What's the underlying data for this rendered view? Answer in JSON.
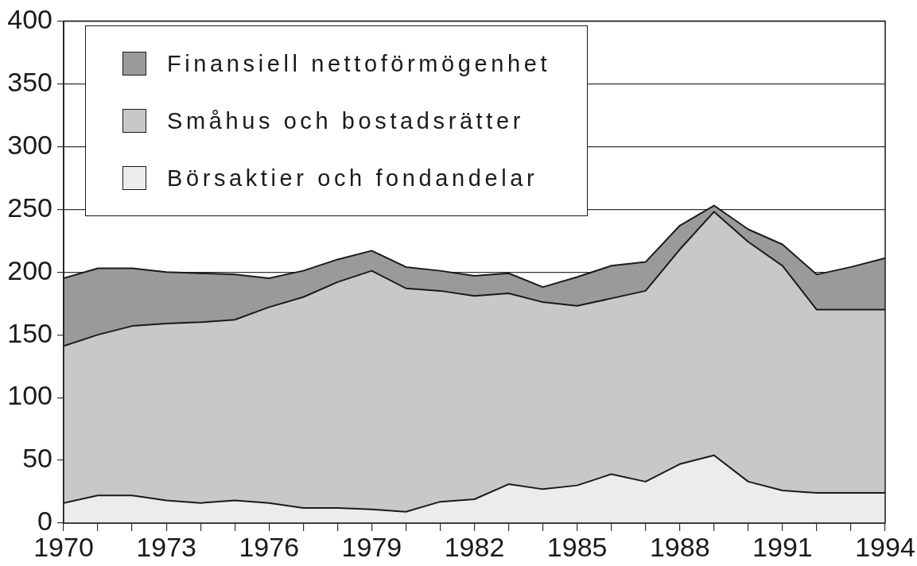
{
  "chart_data": {
    "type": "area",
    "stacked": true,
    "x": [
      1970,
      1971,
      1972,
      1973,
      1974,
      1975,
      1976,
      1977,
      1978,
      1979,
      1980,
      1981,
      1982,
      1983,
      1984,
      1985,
      1986,
      1987,
      1988,
      1989,
      1990,
      1991,
      1992,
      1993,
      1994
    ],
    "series": [
      {
        "name": "Börsaktier och fondandelar",
        "color": "#ececec",
        "values": [
          16,
          22,
          22,
          18,
          16,
          18,
          16,
          12,
          12,
          11,
          9,
          17,
          19,
          31,
          27,
          30,
          39,
          33,
          47,
          54,
          33,
          26,
          24,
          24,
          24
        ]
      },
      {
        "name": "Småhus och bostadsrätter",
        "color": "#c8c8c8",
        "values": [
          125,
          128,
          135,
          141,
          144,
          144,
          156,
          168,
          180,
          190,
          178,
          168,
          162,
          152,
          149,
          143,
          140,
          152,
          171,
          194,
          191,
          179,
          146,
          146,
          146
        ]
      },
      {
        "name": "Finansiell nettoförmögenhet",
        "color": "#9a9a9a",
        "values": [
          54,
          53,
          46,
          41,
          39,
          36,
          23,
          21,
          18,
          16,
          17,
          16,
          16,
          16,
          12,
          23,
          26,
          23,
          19,
          5,
          10,
          17,
          28,
          34,
          41
        ]
      }
    ],
    "xlim": [
      1970,
      1994
    ],
    "xticks": [
      1970,
      {
        "value": 1971,
        "label": null
      },
      {
        "value": 1972,
        "label": null
      },
      1973,
      {
        "value": 1974,
        "label": null
      },
      {
        "value": 1975,
        "label": null
      },
      1976,
      {
        "value": 1977,
        "label": null
      },
      {
        "value": 1978,
        "label": null
      },
      1979,
      {
        "value": 1980,
        "label": null
      },
      {
        "value": 1981,
        "label": null
      },
      1982,
      {
        "value": 1983,
        "label": null
      },
      {
        "value": 1984,
        "label": null
      },
      1985,
      {
        "value": 1986,
        "label": null
      },
      {
        "value": 1987,
        "label": null
      },
      1988,
      {
        "value": 1989,
        "label": null
      },
      {
        "value": 1990,
        "label": null
      },
      1991,
      {
        "value": 1992,
        "label": null
      },
      {
        "value": 1993,
        "label": null
      },
      1994
    ],
    "ylim": [
      0,
      400
    ],
    "yticks": [
      0,
      50,
      100,
      150,
      200,
      250,
      300,
      350,
      400
    ],
    "grid": "y",
    "legend": "top left"
  }
}
